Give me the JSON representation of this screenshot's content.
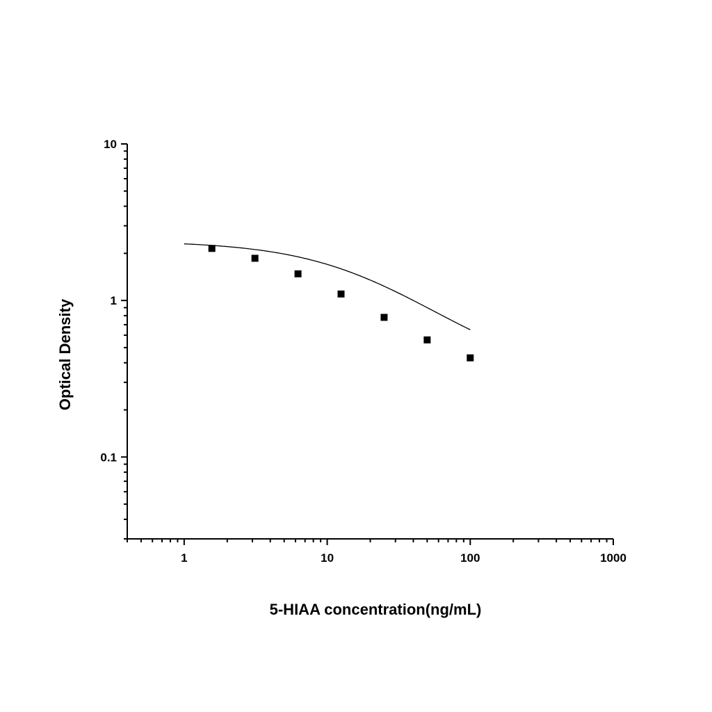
{
  "chart_data": {
    "type": "scatter",
    "xlabel": "5-HIAA concentration(ng/mL)",
    "ylabel": "Optical Density",
    "x_scale": "log",
    "y_scale": "log",
    "xlim": [
      0.4,
      1000
    ],
    "ylim": [
      0.03,
      10
    ],
    "x_ticks": [
      {
        "value": 1,
        "label": "1"
      },
      {
        "value": 10,
        "label": "10"
      },
      {
        "value": 100,
        "label": "100"
      },
      {
        "value": 1000,
        "label": "1000"
      }
    ],
    "y_ticks": [
      {
        "value": 0.1,
        "label": "0.1"
      },
      {
        "value": 1,
        "label": "1"
      },
      {
        "value": 10,
        "label": "10"
      }
    ],
    "grid": false,
    "marker": "square",
    "color": "#000000",
    "series": [
      {
        "x": [
          1.5625,
          3.125,
          6.25,
          12.5,
          25,
          50,
          100
        ],
        "y": [
          2.15,
          1.86,
          1.48,
          1.1,
          0.78,
          0.56,
          0.43
        ]
      }
    ],
    "fit_curve": {
      "type": "4PL",
      "x_range": [
        1,
        100
      ],
      "A": 2.4,
      "D": 0.3,
      "C": 20,
      "B": 1
    }
  }
}
